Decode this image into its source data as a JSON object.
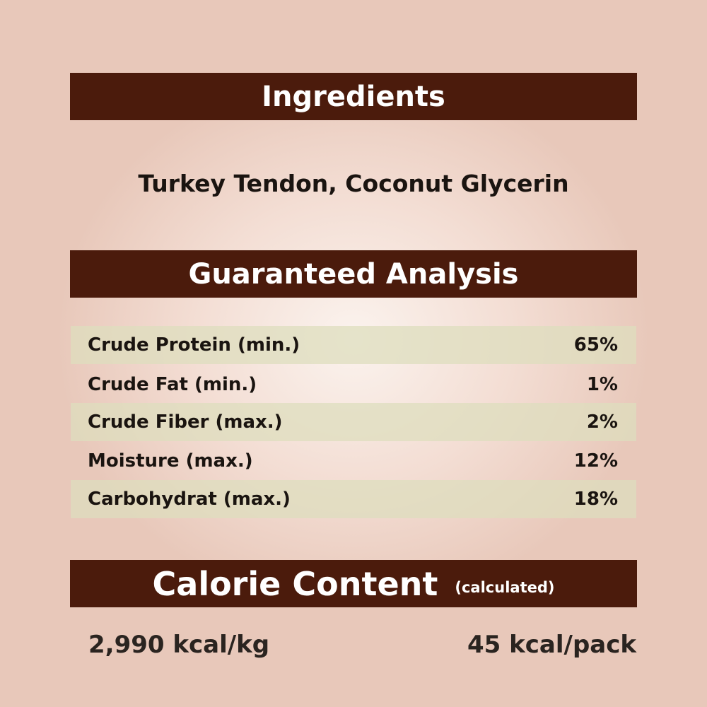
{
  "ingredients": {
    "heading": "Ingredients",
    "text": "Turkey Tendon, Coconut Glycerin"
  },
  "analysis": {
    "heading": "Guaranteed Analysis",
    "rows": [
      {
        "label": "Crude Protein (min.)",
        "value": "65%"
      },
      {
        "label": "Crude Fat (min.)",
        "value": "1%"
      },
      {
        "label": "Crude Fiber (max.)",
        "value": "2%"
      },
      {
        "label": "Moisture (max.)",
        "value": "12%"
      },
      {
        "label": "Carbohydrat (max.)",
        "value": "18%"
      }
    ]
  },
  "calorie": {
    "heading": "Calorie Content",
    "note": "(calculated)",
    "per_kg": "2,990 kcal/kg",
    "per_pack": "45 kcal/pack"
  },
  "colors": {
    "banner": "#4b1b0c",
    "row_shade": "#dedebe",
    "background": "#f3ddd3"
  }
}
